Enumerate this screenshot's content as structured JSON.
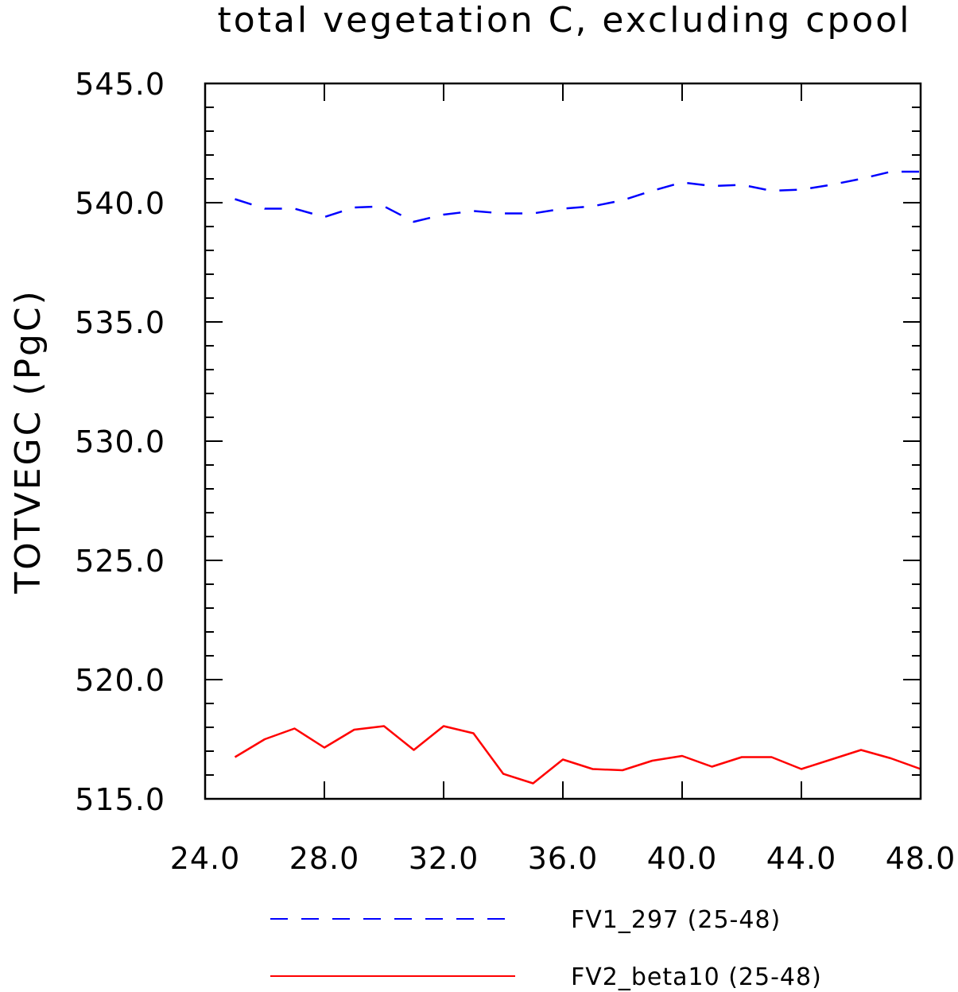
{
  "chart_data": {
    "type": "line",
    "title": "total vegetation C, excluding cpool",
    "xlabel": "",
    "ylabel": "TOTVEGC   (PgC)",
    "xlim": [
      24,
      48
    ],
    "ylim": [
      515,
      545
    ],
    "x_ticks": [
      "24.0",
      "28.0",
      "32.0",
      "36.0",
      "40.0",
      "44.0",
      "48.0"
    ],
    "y_ticks": [
      "515.0",
      "520.0",
      "525.0",
      "530.0",
      "535.0",
      "540.0",
      "545.0"
    ],
    "x": [
      25,
      26,
      27,
      28,
      29,
      30,
      31,
      32,
      33,
      34,
      35,
      36,
      37,
      38,
      39,
      40,
      41,
      42,
      43,
      44,
      45,
      46,
      47,
      48
    ],
    "series": [
      {
        "name": "FV1_297 (25-48)",
        "color": "#0000ff",
        "dash": "dashed",
        "values": [
          540.15,
          539.75,
          539.75,
          539.4,
          539.8,
          539.85,
          539.2,
          539.5,
          539.65,
          539.55,
          539.55,
          539.75,
          539.85,
          540.1,
          540.5,
          540.85,
          540.7,
          540.75,
          540.5,
          540.55,
          540.75,
          541.0,
          541.3,
          541.3
        ]
      },
      {
        "name": "FV2_beta10 (25-48)",
        "color": "#ff0000",
        "dash": "solid",
        "values": [
          516.75,
          517.5,
          517.95,
          517.15,
          517.9,
          518.05,
          517.05,
          518.05,
          517.75,
          516.05,
          515.65,
          516.65,
          516.25,
          516.2,
          516.6,
          516.8,
          516.35,
          516.75,
          516.75,
          516.25,
          516.65,
          517.05,
          516.7,
          516.25
        ]
      }
    ],
    "grid": false,
    "legend_position": "bottom"
  }
}
